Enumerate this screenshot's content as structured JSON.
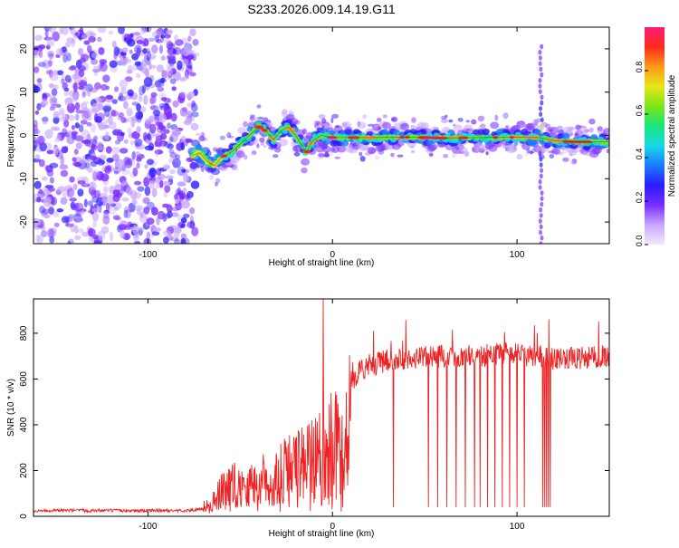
{
  "title": "S233.2026.009.14.19.G11",
  "chart_data": [
    {
      "type": "heatmap",
      "xlabel": "Height of straight line (km)",
      "ylabel": "Frequency (Hz)",
      "xlim": [
        -162,
        150
      ],
      "ylim": [
        -25,
        25
      ],
      "xticks": [
        -100,
        0,
        100
      ],
      "yticks": [
        -20,
        -10,
        0,
        10,
        20
      ],
      "colorbar": {
        "label": "Normalized spectral amplitude",
        "range": [
          0,
          1
        ],
        "ticks": [
          0.0,
          0.2,
          0.4,
          0.6,
          0.8
        ],
        "tick_labels": [
          "0.0",
          "0.2",
          "0.4",
          "0.6",
          "0.8"
        ],
        "colors": [
          "#f0e8ff",
          "#c9a8ff",
          "#7a2cff",
          "#2a1cff",
          "#1a7cff",
          "#16d9e6",
          "#18e67a",
          "#7ae619",
          "#e6e619",
          "#ff9a1a",
          "#ff2a1a",
          "#ff1a7a"
        ]
      },
      "ridge": {
        "x": [
          -78,
          -72,
          -68,
          -64,
          -60,
          -55,
          -50,
          -45,
          -40,
          -36,
          -32,
          -28,
          -24,
          -20,
          -17,
          -14,
          -12,
          -10,
          -6,
          0,
          20,
          40,
          60,
          80,
          100,
          112,
          120,
          130,
          140,
          150
        ],
        "y": [
          -5,
          -4,
          -6,
          -7,
          -5,
          -4,
          -2,
          0,
          2,
          1,
          -1,
          1,
          2,
          0,
          -2,
          -4,
          -2,
          -1,
          0,
          -0.5,
          -0.5,
          -0.4,
          -0.6,
          -0.5,
          -0.4,
          -0.5,
          -1.2,
          -1.5,
          -1.5,
          -1.5
        ]
      },
      "noise_region_x": [
        -162,
        -74
      ],
      "vertical_stripe_x": 113
    },
    {
      "type": "line",
      "xlabel": "Height of straight line (km)",
      "ylabel": "SNR (10 * v/v)",
      "xlim": [
        -162,
        150
      ],
      "ylim": [
        0,
        950
      ],
      "xticks": [
        -100,
        0,
        100
      ],
      "yticks": [
        0,
        200,
        400,
        600,
        800
      ],
      "line_color": "#ee2222",
      "envelope": {
        "x": [
          -162,
          -130,
          -100,
          -80,
          -70,
          -65,
          -60,
          -55,
          -50,
          -45,
          -40,
          -35,
          -30,
          -25,
          -20,
          -15,
          -10,
          -5,
          0,
          5,
          10,
          15,
          20,
          30,
          40,
          60,
          80,
          90,
          100,
          110,
          120,
          130,
          150
        ],
        "y": [
          25,
          25,
          25,
          25,
          30,
          80,
          150,
          180,
          200,
          200,
          210,
          230,
          260,
          280,
          300,
          330,
          370,
          400,
          450,
          520,
          590,
          640,
          660,
          680,
          690,
          700,
          700,
          710,
          710,
          700,
          690,
          690,
          700
        ]
      },
      "dropouts_x": [
        33,
        52,
        57,
        62,
        67,
        72,
        77,
        80,
        84,
        88,
        92,
        96,
        100,
        104,
        114,
        115,
        116,
        117,
        118
      ],
      "spike": {
        "x": -5,
        "y": 950
      }
    }
  ]
}
